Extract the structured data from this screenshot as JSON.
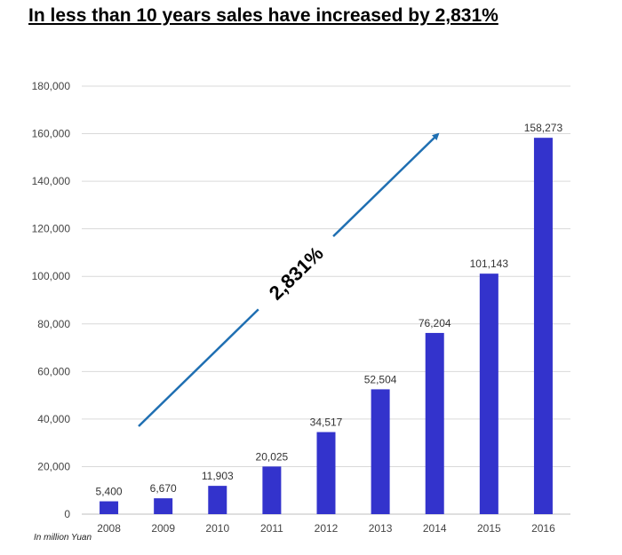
{
  "title": "In less than 10 years sales have increased by 2,831%",
  "unit_note": "In million Yuan",
  "annotation": "2,831%",
  "colors": {
    "bar": "#3333CC",
    "arrow": "#1F6FB2",
    "grid": "#D9D9D9"
  },
  "chart_data": {
    "type": "bar",
    "categories": [
      "2008",
      "2009",
      "2010",
      "2011",
      "2012",
      "2013",
      "2014",
      "2015",
      "2016"
    ],
    "values": [
      5400,
      6670,
      11903,
      20025,
      34517,
      52504,
      76204,
      101143,
      158273
    ],
    "data_labels": [
      "5,400",
      "6,670",
      "11,903",
      "20,025",
      "34,517",
      "52,504",
      "76,204",
      "101,143",
      "158,273"
    ],
    "y_ticks": [
      "0",
      "20,000",
      "40,000",
      "60,000",
      "80,000",
      "100,000",
      "120,000",
      "140,000",
      "160,000",
      "180,000"
    ],
    "ylim": [
      0,
      180000
    ],
    "grid": true
  }
}
